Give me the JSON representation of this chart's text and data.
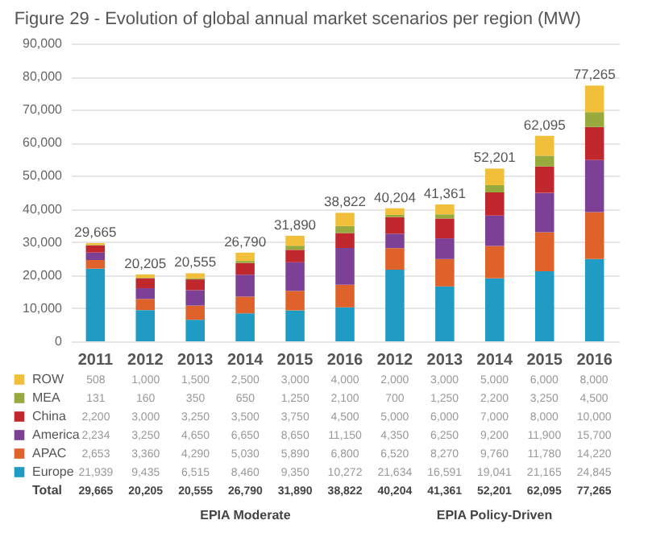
{
  "chart_data": {
    "type": "bar",
    "title": "Figure 29 - Evolution of global annual market scenarios per region (MW)",
    "categories": [
      "2011",
      "2012",
      "2013",
      "2014",
      "2015",
      "2016",
      "2012",
      "2013",
      "2014",
      "2015",
      "2016"
    ],
    "series": [
      {
        "name": "Europe",
        "color": "#1f9bc4",
        "values": [
          21939,
          9435,
          6515,
          8460,
          9350,
          10272,
          21634,
          16591,
          19041,
          21165,
          24845
        ],
        "value_labels": [
          "21,939",
          "9,435",
          "6,515",
          "8,460",
          "9,350",
          "10,272",
          "21,634",
          "16,591",
          "19,041",
          "21,165",
          "24,845"
        ]
      },
      {
        "name": "APAC",
        "color": "#e0622b",
        "values": [
          2653,
          3360,
          4290,
          5030,
          5890,
          6800,
          6520,
          8270,
          9760,
          11780,
          14220
        ],
        "value_labels": [
          "2,653",
          "3,360",
          "4,290",
          "5,030",
          "5,890",
          "6,800",
          "6,520",
          "8,270",
          "9,760",
          "11,780",
          "14,220"
        ]
      },
      {
        "name": "America",
        "color": "#7c4196",
        "values": [
          2234,
          3250,
          4650,
          6650,
          8650,
          11150,
          4350,
          6250,
          9200,
          11900,
          15700
        ],
        "value_labels": [
          "2,234",
          "3,250",
          "4,650",
          "6,650",
          "8,650",
          "11,150",
          "4,350",
          "6,250",
          "9,200",
          "11,900",
          "15,700"
        ]
      },
      {
        "name": "China",
        "color": "#c0282e",
        "values": [
          2200,
          3000,
          3250,
          3500,
          3750,
          4500,
          5000,
          6000,
          7000,
          8000,
          10000
        ],
        "value_labels": [
          "2,200",
          "3,000",
          "3,250",
          "3,500",
          "3,750",
          "4,500",
          "5,000",
          "6,000",
          "7,000",
          "8,000",
          "10,000"
        ]
      },
      {
        "name": "MEA",
        "color": "#98a93d",
        "values": [
          131,
          160,
          350,
          650,
          1250,
          2100,
          700,
          1250,
          2200,
          3250,
          4500
        ],
        "value_labels": [
          "131",
          "160",
          "350",
          "650",
          "1,250",
          "2,100",
          "700",
          "1,250",
          "2,200",
          "3,250",
          "4,500"
        ]
      },
      {
        "name": "ROW",
        "color": "#f2bf3a",
        "values": [
          508,
          1000,
          1500,
          2500,
          3000,
          4000,
          2000,
          3000,
          5000,
          6000,
          8000
        ],
        "value_labels": [
          "508",
          "1,000",
          "1,500",
          "2,500",
          "3,000",
          "4,000",
          "2,000",
          "3,000",
          "5,000",
          "6,000",
          "8,000"
        ]
      }
    ],
    "stacked": true,
    "totals": [
      "29,665",
      "20,205",
      "20,555",
      "26,790",
      "31,890",
      "38,822",
      "40,204",
      "41,361",
      "52,201",
      "62,095",
      "77,265"
    ],
    "ylim": [
      0,
      90000
    ],
    "yticks": [
      0,
      {
        "value": 10000,
        "label": "10,000"
      },
      {
        "value": 20000,
        "label": "20,000"
      },
      {
        "value": 30000,
        "label": "30,000"
      },
      {
        "value": 40000,
        "label": "40,000"
      },
      {
        "value": 50000,
        "label": "50,000"
      },
      {
        "value": 60000,
        "label": "60,000"
      },
      {
        "value": 70000,
        "label": "70,000"
      },
      {
        "value": 80000,
        "label": "80,000"
      },
      {
        "value": 90000,
        "label": "90,000"
      }
    ],
    "grid": "y",
    "legend": "bottom left",
    "annotations": [
      "Total",
      "EPIA Moderate",
      "EPIA Policy-Driven"
    ]
  }
}
